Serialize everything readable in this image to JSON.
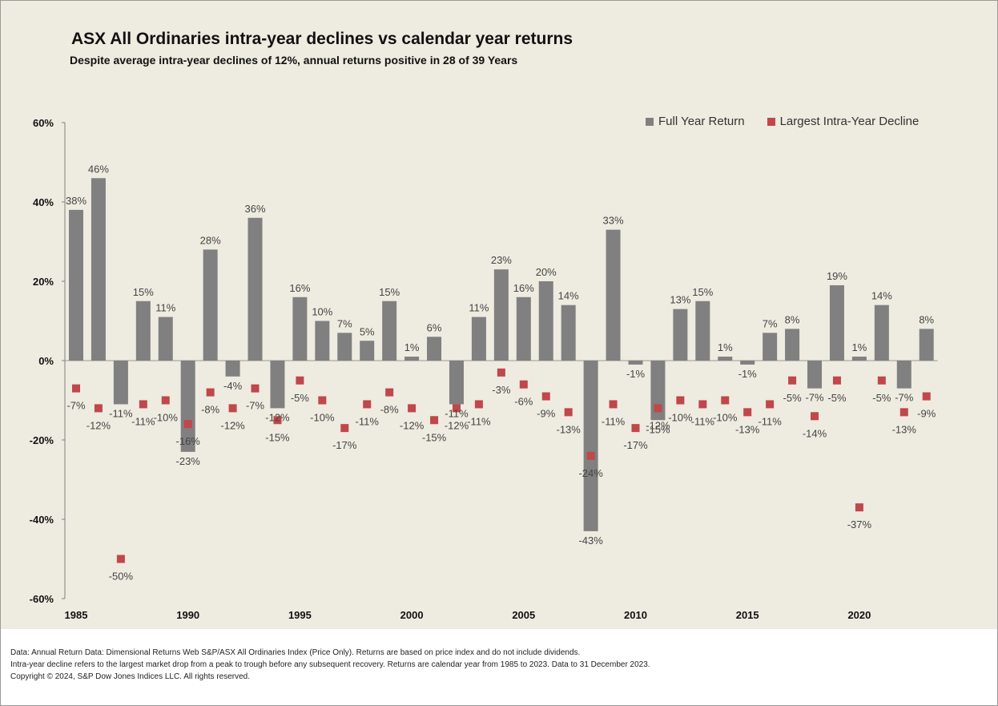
{
  "title": "ASX All Ordinaries intra-year declines vs calendar year returns",
  "subtitle": "Despite average intra-year declines of 12%, annual returns positive in 28 of 39 Years",
  "footnotes": {
    "line1": "Data: Annual Return Data: Dimensional Returns Web  S&P/ASX All Ordinaries Index (Price Only). Returns are based on price index and do not include dividends.",
    "line2": "Intra-year decline refers to the largest market drop from a peak to trough before any subsequent recovery. Returns are calendar year from 1985 to 2023. Data to 31 December 2023.",
    "line3": "Copyright © 2024, S&P Dow Jones Indices LLC. All rights reserved."
  },
  "colors": {
    "background": "#eeebe0",
    "bar": "#808080",
    "marker": "#c0474a"
  },
  "chart_data": {
    "type": "bar",
    "title": "ASX All Ordinaries intra-year declines vs calendar year returns",
    "subtitle": "Despite average intra-year declines of 12%, annual returns positive in 28 of 39 Years",
    "xlabel": "",
    "ylabel": "",
    "ylim": [
      -60,
      60
    ],
    "y_ticks": [
      60,
      40,
      20,
      0,
      -20,
      -40,
      -60
    ],
    "y_tick_labels": [
      "60%",
      "40%",
      "20%",
      "0%",
      "-20%",
      "-40%",
      "-60%"
    ],
    "x_tick_labels": [
      "1985",
      "1990",
      "1995",
      "2000",
      "2005",
      "2010",
      "2015",
      "2020"
    ],
    "legend_position": "top-right",
    "grid": false,
    "categories": [
      1985,
      1986,
      1987,
      1988,
      1989,
      1990,
      1991,
      1992,
      1993,
      1994,
      1995,
      1996,
      1997,
      1998,
      1999,
      2000,
      2001,
      2002,
      2003,
      2004,
      2005,
      2006,
      2007,
      2008,
      2009,
      2010,
      2011,
      2012,
      2013,
      2014,
      2015,
      2016,
      2017,
      2018,
      2019,
      2020,
      2021,
      2022,
      2023
    ],
    "series": [
      {
        "name": "Full Year Return",
        "type": "bar",
        "values": [
          38,
          46,
          -11,
          15,
          11,
          -23,
          28,
          -4,
          36,
          -12,
          16,
          10,
          7,
          5,
          15,
          1,
          6,
          -11,
          11,
          23,
          16,
          20,
          14,
          -43,
          33,
          -1,
          -15,
          13,
          15,
          1,
          -1,
          7,
          8,
          -7,
          19,
          1,
          14,
          -7,
          8
        ],
        "labels": [
          "38%",
          "46%",
          "-11%",
          "15%",
          "11%",
          "-23%",
          "28%",
          "-4%",
          "36%",
          "-12%",
          "16%",
          "10%",
          "7%",
          "5%",
          "15%",
          "1%",
          "6%",
          "-11%",
          "11%",
          "23%",
          "16%",
          "20%",
          "14%",
          "-43%",
          "33%",
          "-1%",
          "-15%",
          "13%",
          "15%",
          "1%",
          "-1%",
          "7%",
          "8%",
          "-7%",
          "19%",
          "1%",
          "14%",
          "-7%",
          "8%"
        ]
      },
      {
        "name": "Largest Intra-Year Decline",
        "type": "scatter",
        "values": [
          -7,
          -12,
          -50,
          -11,
          -10,
          -16,
          -8,
          -12,
          -7,
          -15,
          -5,
          -10,
          -17,
          -11,
          -8,
          -12,
          -15,
          -12,
          -11,
          -3,
          -6,
          -9,
          -13,
          -24,
          -11,
          -17,
          -12,
          -10,
          -11,
          -10,
          -13,
          -11,
          -5,
          -14,
          -5,
          -37,
          -5,
          -13,
          -9
        ],
        "labels": [
          "-7%",
          "-12%",
          "-50%",
          "-11%",
          "-10%",
          "-16%",
          "-8%",
          "-12%",
          "-7%",
          "-15%",
          "-5%",
          "-10%",
          "-17%",
          "-11%",
          "-8%",
          "-12%",
          "-15%",
          "-12%",
          "-11%",
          "-3%",
          "-6%",
          "-9%",
          "-13%",
          "-24%",
          "-11%",
          "-17%",
          "-12%",
          "-10%",
          "-11%",
          "-10%",
          "-13%",
          "-11%",
          "-5%",
          "-14%",
          "-5%",
          "-37%",
          "-5%",
          "-13%",
          "-9%"
        ]
      }
    ]
  }
}
